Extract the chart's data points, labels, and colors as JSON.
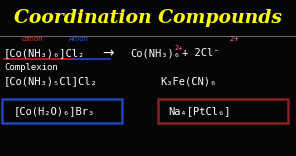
{
  "bg_color": "#050508",
  "title": "Coordination Compounds",
  "title_color": "#FFFF00",
  "title_fontsize": 13.5,
  "separator_color": "#666666",
  "label_cation": "cation",
  "label_anion": "Anion",
  "label_cation_color": "#EE3333",
  "label_anion_color": "#3355EE",
  "label_charge_color": "#FF7777",
  "text_color": "#FFFFFF",
  "red_underline_color": "#CC2222",
  "blue_underline_color": "#2244CC",
  "blue_box_color": "#2244BB",
  "red_box_color": "#882222",
  "line1_left": "[Co(NH₃)₆]Cl₂",
  "line1_arrow": "→",
  "line1_right1": "Co(NH₃)₆",
  "line1_charge": "2+",
  "line1_right2": "+ 2Cl⁻",
  "line2": "Complexion",
  "line3_left": "[Co(NH₃)₅Cl]Cl₂",
  "line3_right": "K₃Fe(CN)₆",
  "line4_left": "[Co(H₂O)₆]Br₃",
  "line4_right": "Na₄[PtCl₆]"
}
